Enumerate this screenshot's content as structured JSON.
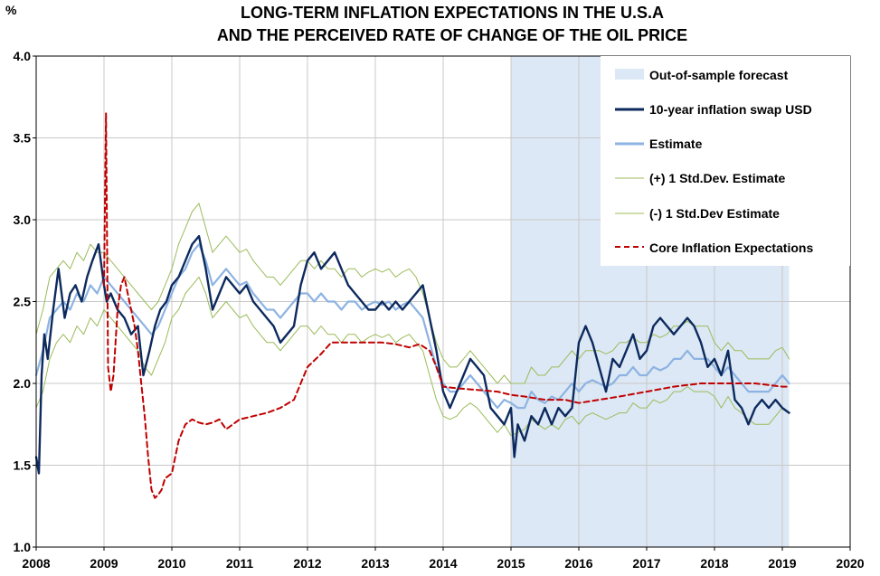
{
  "chart_data": {
    "type": "line",
    "title_lines": [
      "LONG-TERM INFLATION EXPECTATIONS IN THE U.S.A",
      "AND THE PERCEIVED RATE OF CHANGE OF THE OIL PRICE"
    ],
    "ylabel": "%",
    "xlim": [
      2008,
      2020
    ],
    "ylim": [
      1.0,
      4.0
    ],
    "x_ticks": [
      "2008",
      "2009",
      "2010",
      "2011",
      "2012",
      "2013",
      "2014",
      "2015",
      "2016",
      "2017",
      "2018",
      "2019",
      "2020"
    ],
    "y_ticks": [
      "1.0",
      "1.5",
      "2.0",
      "2.5",
      "3.0",
      "3.5",
      "4.0"
    ],
    "grid": true,
    "legend_position": "top-right",
    "shaded_region": {
      "label": "Out-of-sample forecast",
      "x_start": 2015.0,
      "x_end": 2019.1,
      "color": "#dce8f5"
    },
    "series": [
      {
        "name": "10-year inflation swap USD",
        "color": "#0d2a5e",
        "style": "solid-thick",
        "x": [
          2008.0,
          2008.04,
          2008.08,
          2008.12,
          2008.17,
          2008.25,
          2008.33,
          2008.42,
          2008.5,
          2008.58,
          2008.67,
          2008.75,
          2008.83,
          2008.92,
          2009.0,
          2009.04,
          2009.1,
          2009.2,
          2009.3,
          2009.4,
          2009.5,
          2009.58,
          2009.67,
          2009.75,
          2009.83,
          2009.92,
          2010.0,
          2010.1,
          2010.2,
          2010.3,
          2010.4,
          2010.5,
          2010.6,
          2010.7,
          2010.8,
          2010.9,
          2011.0,
          2011.1,
          2011.2,
          2011.3,
          2011.4,
          2011.5,
          2011.6,
          2011.7,
          2011.8,
          2011.9,
          2012.0,
          2012.1,
          2012.2,
          2012.3,
          2012.4,
          2012.5,
          2012.6,
          2012.7,
          2012.8,
          2012.9,
          2013.0,
          2013.1,
          2013.2,
          2013.3,
          2013.4,
          2013.5,
          2013.6,
          2013.7,
          2013.8,
          2013.9,
          2014.0,
          2014.1,
          2014.2,
          2014.3,
          2014.4,
          2014.5,
          2014.6,
          2014.7,
          2014.8,
          2014.9,
          2015.0,
          2015.05,
          2015.1,
          2015.2,
          2015.3,
          2015.4,
          2015.5,
          2015.6,
          2015.7,
          2015.8,
          2015.9,
          2016.0,
          2016.1,
          2016.2,
          2016.3,
          2016.4,
          2016.5,
          2016.6,
          2016.7,
          2016.8,
          2016.9,
          2017.0,
          2017.1,
          2017.2,
          2017.3,
          2017.4,
          2017.5,
          2017.6,
          2017.7,
          2017.8,
          2017.9,
          2018.0,
          2018.1,
          2018.2,
          2018.3,
          2018.4,
          2018.5,
          2018.6,
          2018.7,
          2018.8,
          2018.9,
          2019.0,
          2019.1
        ],
        "values": [
          1.55,
          1.45,
          2.05,
          2.3,
          2.15,
          2.45,
          2.7,
          2.4,
          2.55,
          2.6,
          2.5,
          2.65,
          2.75,
          2.85,
          2.6,
          2.5,
          2.55,
          2.45,
          2.4,
          2.3,
          2.35,
          2.05,
          2.2,
          2.35,
          2.45,
          2.5,
          2.6,
          2.65,
          2.75,
          2.85,
          2.9,
          2.7,
          2.45,
          2.55,
          2.65,
          2.6,
          2.55,
          2.6,
          2.5,
          2.45,
          2.4,
          2.35,
          2.25,
          2.3,
          2.35,
          2.6,
          2.75,
          2.8,
          2.7,
          2.75,
          2.8,
          2.7,
          2.6,
          2.55,
          2.5,
          2.45,
          2.45,
          2.5,
          2.45,
          2.5,
          2.45,
          2.5,
          2.55,
          2.6,
          2.4,
          2.2,
          1.95,
          1.85,
          1.95,
          2.05,
          2.15,
          2.1,
          2.05,
          1.85,
          1.8,
          1.75,
          1.85,
          1.55,
          1.75,
          1.65,
          1.8,
          1.75,
          1.85,
          1.75,
          1.85,
          1.8,
          1.85,
          2.25,
          2.35,
          2.25,
          2.1,
          1.95,
          2.15,
          2.1,
          2.2,
          2.3,
          2.15,
          2.2,
          2.35,
          2.4,
          2.35,
          2.3,
          2.35,
          2.4,
          2.35,
          2.25,
          2.1,
          2.15,
          2.05,
          2.2,
          1.9,
          1.85,
          1.75,
          1.85,
          1.9,
          1.85,
          1.9,
          1.85,
          1.82
        ]
      },
      {
        "name": "Estimate",
        "color": "#8db3e2",
        "style": "solid-thick",
        "x": [
          2008.0,
          2008.1,
          2008.2,
          2008.3,
          2008.4,
          2008.5,
          2008.6,
          2008.7,
          2008.8,
          2008.9,
          2009.0,
          2009.1,
          2009.2,
          2009.3,
          2009.4,
          2009.5,
          2009.6,
          2009.7,
          2009.8,
          2009.9,
          2010.0,
          2010.1,
          2010.2,
          2010.3,
          2010.4,
          2010.5,
          2010.6,
          2010.7,
          2010.8,
          2010.9,
          2011.0,
          2011.1,
          2011.2,
          2011.3,
          2011.4,
          2011.5,
          2011.6,
          2011.7,
          2011.8,
          2011.9,
          2012.0,
          2012.1,
          2012.2,
          2012.3,
          2012.4,
          2012.5,
          2012.6,
          2012.7,
          2012.8,
          2012.9,
          2013.0,
          2013.1,
          2013.2,
          2013.3,
          2013.4,
          2013.5,
          2013.6,
          2013.7,
          2013.8,
          2013.9,
          2014.0,
          2014.1,
          2014.2,
          2014.3,
          2014.4,
          2014.5,
          2014.6,
          2014.7,
          2014.8,
          2014.9,
          2015.0,
          2015.1,
          2015.2,
          2015.3,
          2015.4,
          2015.5,
          2015.6,
          2015.7,
          2015.8,
          2015.9,
          2016.0,
          2016.1,
          2016.2,
          2016.3,
          2016.4,
          2016.5,
          2016.6,
          2016.7,
          2016.8,
          2016.9,
          2017.0,
          2017.1,
          2017.2,
          2017.3,
          2017.4,
          2017.5,
          2017.6,
          2017.7,
          2017.8,
          2017.9,
          2018.0,
          2018.1,
          2018.2,
          2018.3,
          2018.4,
          2018.5,
          2018.6,
          2018.7,
          2018.8,
          2018.9,
          2019.0,
          2019.1
        ],
        "values": [
          2.05,
          2.2,
          2.4,
          2.45,
          2.5,
          2.45,
          2.55,
          2.5,
          2.6,
          2.55,
          2.65,
          2.6,
          2.55,
          2.5,
          2.45,
          2.4,
          2.35,
          2.3,
          2.35,
          2.45,
          2.55,
          2.65,
          2.7,
          2.8,
          2.85,
          2.75,
          2.6,
          2.65,
          2.7,
          2.65,
          2.6,
          2.62,
          2.55,
          2.5,
          2.45,
          2.45,
          2.4,
          2.45,
          2.5,
          2.55,
          2.55,
          2.5,
          2.55,
          2.5,
          2.5,
          2.45,
          2.5,
          2.5,
          2.45,
          2.48,
          2.5,
          2.48,
          2.5,
          2.45,
          2.48,
          2.5,
          2.45,
          2.4,
          2.25,
          2.1,
          2.0,
          1.95,
          1.95,
          2.0,
          2.05,
          2.0,
          1.95,
          1.9,
          1.85,
          1.9,
          1.88,
          1.85,
          1.85,
          1.95,
          1.9,
          1.88,
          1.92,
          1.9,
          1.95,
          2.0,
          1.95,
          2.0,
          2.02,
          2.0,
          1.98,
          2.0,
          2.05,
          2.05,
          2.1,
          2.05,
          2.05,
          2.1,
          2.08,
          2.1,
          2.15,
          2.15,
          2.2,
          2.15,
          2.15,
          2.15,
          2.1,
          2.05,
          2.1,
          2.05,
          2.0,
          1.95,
          1.95,
          1.95,
          1.95,
          2.0,
          2.05,
          2.0
        ]
      },
      {
        "name": "(+) 1 Std.Dev. Estimate",
        "color": "#9bbb59",
        "style": "solid-thin",
        "x": [
          2008.0,
          2008.1,
          2008.2,
          2008.3,
          2008.4,
          2008.5,
          2008.6,
          2008.7,
          2008.8,
          2008.9,
          2009.0,
          2009.1,
          2009.2,
          2009.3,
          2009.4,
          2009.5,
          2009.6,
          2009.7,
          2009.8,
          2009.9,
          2010.0,
          2010.1,
          2010.2,
          2010.3,
          2010.4,
          2010.5,
          2010.6,
          2010.7,
          2010.8,
          2010.9,
          2011.0,
          2011.1,
          2011.2,
          2011.3,
          2011.4,
          2011.5,
          2011.6,
          2011.7,
          2011.8,
          2011.9,
          2012.0,
          2012.1,
          2012.2,
          2012.3,
          2012.4,
          2012.5,
          2012.6,
          2012.7,
          2012.8,
          2012.9,
          2013.0,
          2013.1,
          2013.2,
          2013.3,
          2013.4,
          2013.5,
          2013.6,
          2013.7,
          2013.8,
          2013.9,
          2014.0,
          2014.1,
          2014.2,
          2014.3,
          2014.4,
          2014.5,
          2014.6,
          2014.7,
          2014.8,
          2014.9,
          2015.0,
          2015.1,
          2015.2,
          2015.3,
          2015.4,
          2015.5,
          2015.6,
          2015.7,
          2015.8,
          2015.9,
          2016.0,
          2016.1,
          2016.2,
          2016.3,
          2016.4,
          2016.5,
          2016.6,
          2016.7,
          2016.8,
          2016.9,
          2017.0,
          2017.1,
          2017.2,
          2017.3,
          2017.4,
          2017.5,
          2017.6,
          2017.7,
          2017.8,
          2017.9,
          2018.0,
          2018.1,
          2018.2,
          2018.3,
          2018.4,
          2018.5,
          2018.6,
          2018.7,
          2018.8,
          2018.9,
          2019.0,
          2019.1
        ],
        "values": [
          2.3,
          2.45,
          2.65,
          2.7,
          2.75,
          2.7,
          2.8,
          2.75,
          2.85,
          2.8,
          2.8,
          2.75,
          2.7,
          2.65,
          2.6,
          2.55,
          2.5,
          2.45,
          2.5,
          2.6,
          2.7,
          2.85,
          2.95,
          3.05,
          3.1,
          2.95,
          2.8,
          2.85,
          2.9,
          2.85,
          2.8,
          2.82,
          2.75,
          2.7,
          2.65,
          2.65,
          2.6,
          2.65,
          2.7,
          2.75,
          2.75,
          2.7,
          2.75,
          2.7,
          2.7,
          2.65,
          2.7,
          2.7,
          2.65,
          2.68,
          2.7,
          2.68,
          2.7,
          2.65,
          2.68,
          2.7,
          2.65,
          2.55,
          2.4,
          2.25,
          2.15,
          2.1,
          2.1,
          2.15,
          2.2,
          2.15,
          2.1,
          2.05,
          2.0,
          2.05,
          2.0,
          2.0,
          2.0,
          2.1,
          2.05,
          2.05,
          2.1,
          2.1,
          2.15,
          2.2,
          2.15,
          2.2,
          2.2,
          2.2,
          2.18,
          2.2,
          2.25,
          2.25,
          2.28,
          2.25,
          2.25,
          2.3,
          2.28,
          2.3,
          2.35,
          2.35,
          2.38,
          2.35,
          2.35,
          2.35,
          2.25,
          2.2,
          2.25,
          2.2,
          2.2,
          2.15,
          2.15,
          2.15,
          2.15,
          2.2,
          2.22,
          2.15
        ]
      },
      {
        "name": "(-) 1 Std.Dev Estimate",
        "color": "#9bbb59",
        "style": "solid-thin",
        "x": [
          2008.0,
          2008.1,
          2008.2,
          2008.3,
          2008.4,
          2008.5,
          2008.6,
          2008.7,
          2008.8,
          2008.9,
          2009.0,
          2009.1,
          2009.2,
          2009.3,
          2009.4,
          2009.5,
          2009.6,
          2009.7,
          2009.8,
          2009.9,
          2010.0,
          2010.1,
          2010.2,
          2010.3,
          2010.4,
          2010.5,
          2010.6,
          2010.7,
          2010.8,
          2010.9,
          2011.0,
          2011.1,
          2011.2,
          2011.3,
          2011.4,
          2011.5,
          2011.6,
          2011.7,
          2011.8,
          2011.9,
          2012.0,
          2012.1,
          2012.2,
          2012.3,
          2012.4,
          2012.5,
          2012.6,
          2012.7,
          2012.8,
          2012.9,
          2013.0,
          2013.1,
          2013.2,
          2013.3,
          2013.4,
          2013.5,
          2013.6,
          2013.7,
          2013.8,
          2013.9,
          2014.0,
          2014.1,
          2014.2,
          2014.3,
          2014.4,
          2014.5,
          2014.6,
          2014.7,
          2014.8,
          2014.9,
          2015.0,
          2015.1,
          2015.2,
          2015.3,
          2015.4,
          2015.5,
          2015.6,
          2015.7,
          2015.8,
          2015.9,
          2016.0,
          2016.1,
          2016.2,
          2016.3,
          2016.4,
          2016.5,
          2016.6,
          2016.7,
          2016.8,
          2016.9,
          2017.0,
          2017.1,
          2017.2,
          2017.3,
          2017.4,
          2017.5,
          2017.6,
          2017.7,
          2017.8,
          2017.9,
          2018.0,
          2018.1,
          2018.2,
          2018.3,
          2018.4,
          2018.5,
          2018.6,
          2018.7,
          2018.8,
          2018.9,
          2019.0,
          2019.1
        ],
        "values": [
          1.85,
          1.95,
          2.15,
          2.25,
          2.3,
          2.25,
          2.35,
          2.3,
          2.4,
          2.35,
          2.45,
          2.4,
          2.35,
          2.3,
          2.25,
          2.2,
          2.1,
          2.05,
          2.15,
          2.25,
          2.4,
          2.45,
          2.55,
          2.6,
          2.65,
          2.55,
          2.4,
          2.45,
          2.5,
          2.45,
          2.4,
          2.42,
          2.35,
          2.3,
          2.25,
          2.25,
          2.2,
          2.25,
          2.3,
          2.35,
          2.35,
          2.3,
          2.35,
          2.3,
          2.3,
          2.25,
          2.3,
          2.3,
          2.25,
          2.28,
          2.3,
          2.28,
          2.3,
          2.25,
          2.28,
          2.3,
          2.25,
          2.2,
          2.05,
          1.9,
          1.8,
          1.78,
          1.8,
          1.85,
          1.88,
          1.85,
          1.8,
          1.75,
          1.7,
          1.75,
          1.68,
          1.7,
          1.72,
          1.78,
          1.75,
          1.72,
          1.75,
          1.72,
          1.78,
          1.8,
          1.75,
          1.8,
          1.82,
          1.8,
          1.78,
          1.8,
          1.82,
          1.82,
          1.88,
          1.85,
          1.85,
          1.9,
          1.88,
          1.9,
          1.95,
          1.95,
          1.98,
          1.95,
          1.95,
          1.95,
          1.92,
          1.85,
          1.92,
          1.85,
          1.82,
          1.78,
          1.75,
          1.75,
          1.75,
          1.8,
          1.85,
          1.82
        ]
      },
      {
        "name": "Core Inflation Expectations",
        "color": "#c00000",
        "style": "dashed",
        "x": [
          2009.0,
          2009.03,
          2009.06,
          2009.1,
          2009.14,
          2009.2,
          2009.25,
          2009.3,
          2009.35,
          2009.4,
          2009.45,
          2009.5,
          2009.55,
          2009.6,
          2009.65,
          2009.7,
          2009.75,
          2009.8,
          2009.85,
          2009.9,
          2010.0,
          2010.1,
          2010.2,
          2010.3,
          2010.4,
          2010.5,
          2010.6,
          2010.7,
          2010.8,
          2010.9,
          2011.0,
          2011.2,
          2011.4,
          2011.6,
          2011.8,
          2012.0,
          2012.2,
          2012.35,
          2012.5,
          2012.7,
          2012.9,
          2013.1,
          2013.3,
          2013.5,
          2013.65,
          2013.8,
          2013.9,
          2014.0,
          2014.2,
          2014.5,
          2014.8,
          2015.0,
          2015.2,
          2015.5,
          2015.8,
          2016.0,
          2016.3,
          2016.6,
          2017.0,
          2017.4,
          2017.8,
          2018.2,
          2018.6,
          2019.0,
          2019.1
        ],
        "values": [
          2.6,
          3.65,
          2.1,
          1.95,
          2.05,
          2.45,
          2.6,
          2.65,
          2.55,
          2.45,
          2.35,
          2.2,
          2.0,
          1.8,
          1.55,
          1.35,
          1.3,
          1.32,
          1.35,
          1.42,
          1.45,
          1.65,
          1.75,
          1.78,
          1.76,
          1.75,
          1.76,
          1.78,
          1.72,
          1.75,
          1.78,
          1.8,
          1.82,
          1.85,
          1.9,
          2.1,
          2.18,
          2.25,
          2.25,
          2.25,
          2.25,
          2.25,
          2.24,
          2.22,
          2.24,
          2.2,
          2.1,
          1.98,
          1.97,
          1.96,
          1.95,
          1.93,
          1.92,
          1.9,
          1.9,
          1.88,
          1.9,
          1.92,
          1.95,
          1.98,
          2.0,
          2.0,
          2.0,
          1.98,
          1.98
        ]
      }
    ]
  }
}
